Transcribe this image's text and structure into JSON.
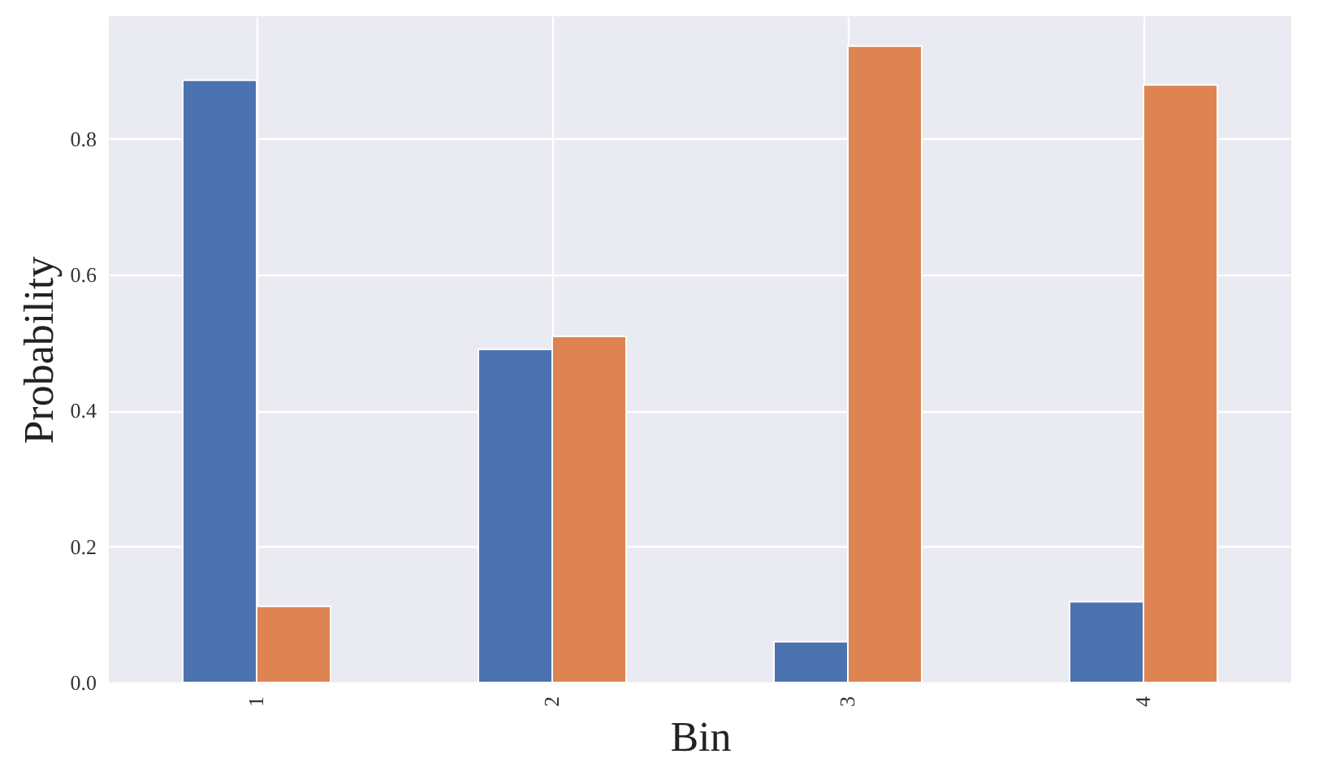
{
  "chart_data": {
    "type": "bar",
    "xlabel": "Bin",
    "ylabel": "Probability",
    "categories": [
      "1",
      "2",
      "3",
      "4"
    ],
    "series": [
      {
        "color": "#4c72b0",
        "values": [
          0.886,
          0.49,
          0.06,
          0.119
        ]
      },
      {
        "color": "#dd8452",
        "values": [
          0.112,
          0.509,
          0.936,
          0.879
        ]
      }
    ],
    "ylim": [
      0,
      0.98
    ],
    "yticks": [
      {
        "value": 0,
        "label": "0.0"
      },
      0.2,
      0.4,
      0.6,
      0.8
    ],
    "grid": true
  }
}
